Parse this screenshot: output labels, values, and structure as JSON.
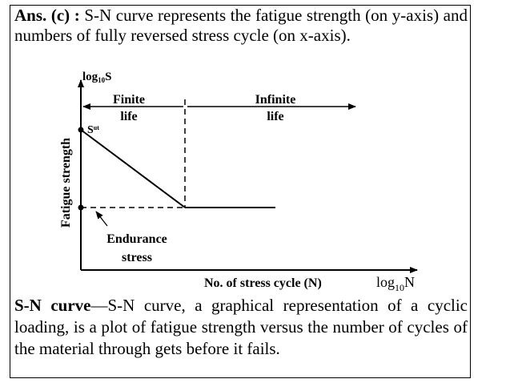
{
  "intro": {
    "label": "Ans. (c) :",
    "text": " S-N curve represents the fatigue strength (on y-axis) and numbers of fully reversed stress cycle (on x-axis)."
  },
  "diagram": {
    "y_axis_label": "Fatigue strength",
    "y_axis_top_label": "log",
    "y_axis_top_sub": "10",
    "y_axis_top_var": "S",
    "x_axis_label": "No. of stress cycle (N)",
    "x_axis_log": "log",
    "x_axis_log_sub": "10",
    "x_axis_log_var": "N",
    "finite_line1": "Finite",
    "finite_line2": "life",
    "infinite_line1": "Infinite",
    "infinite_line2": "life",
    "sut_main": "S",
    "sut_sub": "ut",
    "endurance_line1": "Endurance",
    "endurance_line2": "stress"
  },
  "definition": {
    "term": "S-N curve",
    "text": "—S-N curve, a graphical representation of a cyclic loading, is a plot of fatigue strength versus the number of cycles of the material through gets before it fails."
  }
}
